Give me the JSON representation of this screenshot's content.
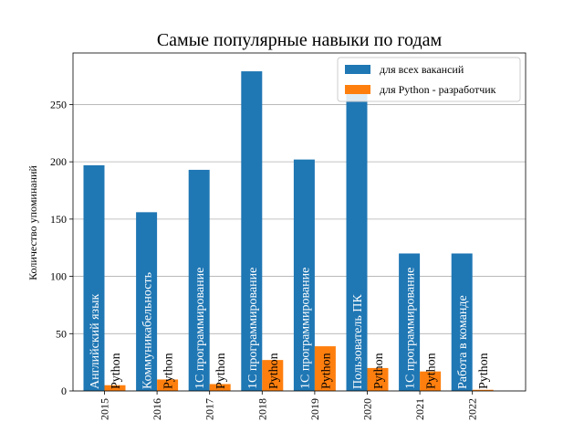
{
  "chart_data": {
    "type": "bar",
    "title": "Самые популярные навыки по годам",
    "xlabel": "",
    "ylabel": "Количество упоминаний",
    "categories": [
      "2015",
      "2016",
      "2017",
      "2018",
      "2019",
      "2020",
      "2021",
      "2022"
    ],
    "ylim": [
      0,
      295
    ],
    "yticks": [
      0,
      50,
      100,
      150,
      200,
      250
    ],
    "grid": "horizontal",
    "legend_position": "top-right",
    "series": [
      {
        "name": "для всех вакансий",
        "color": "#1f77b4",
        "values": [
          197,
          156,
          193,
          279,
          202,
          260,
          120,
          120
        ],
        "labels": [
          "Английский язык",
          "Коммуникабельность",
          "1С программирование",
          "1С программирование",
          "1С программирование",
          "Пользователь ПК",
          "1С программирование",
          "Работа в команде"
        ]
      },
      {
        "name": "для Python - разработчик",
        "color": "#ff7f0e",
        "values": [
          5,
          10,
          6,
          27,
          39,
          20,
          17,
          1
        ],
        "labels": [
          "Python",
          "Python",
          "Python",
          "Python",
          "Python",
          "Python",
          "Python",
          "Python"
        ]
      }
    ]
  }
}
